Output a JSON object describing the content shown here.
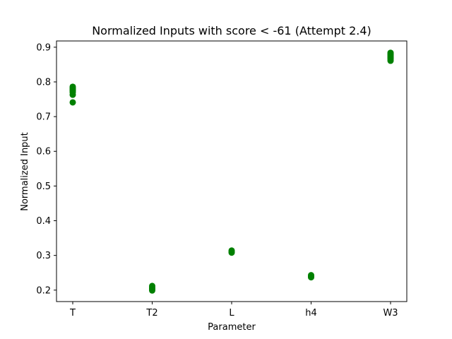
{
  "chart_data": {
    "type": "scatter",
    "title": "Normalized Inputs with score < -61 (Attempt 2.4)",
    "xlabel": "Parameter",
    "ylabel": "Normalized Input",
    "categories": [
      "T",
      "T2",
      "L",
      "h4",
      "W3"
    ],
    "ylim": [
      0.167,
      0.918
    ],
    "yticks": [
      0.2,
      0.3,
      0.4,
      0.5,
      0.6,
      0.7,
      0.8,
      0.9
    ],
    "ytick_labels": [
      "0.2",
      "0.3",
      "0.4",
      "0.5",
      "0.6",
      "0.7",
      "0.8",
      "0.9"
    ],
    "grid": false,
    "marker_color": "#008000",
    "series": [
      {
        "points": [
          {
            "x": "T",
            "y": 0.741
          },
          {
            "x": "T",
            "y": 0.763
          },
          {
            "x": "T",
            "y": 0.77
          },
          {
            "x": "T",
            "y": 0.774
          },
          {
            "x": "T",
            "y": 0.777
          },
          {
            "x": "T",
            "y": 0.78
          },
          {
            "x": "T",
            "y": 0.783
          },
          {
            "x": "T",
            "y": 0.786
          },
          {
            "x": "T2",
            "y": 0.199
          },
          {
            "x": "T2",
            "y": 0.202
          },
          {
            "x": "T2",
            "y": 0.205
          },
          {
            "x": "T2",
            "y": 0.208
          },
          {
            "x": "T2",
            "y": 0.212
          },
          {
            "x": "L",
            "y": 0.308
          },
          {
            "x": "L",
            "y": 0.311
          },
          {
            "x": "L",
            "y": 0.314
          },
          {
            "x": "h4",
            "y": 0.237
          },
          {
            "x": "h4",
            "y": 0.24
          },
          {
            "x": "h4",
            "y": 0.243
          },
          {
            "x": "W3",
            "y": 0.861
          },
          {
            "x": "W3",
            "y": 0.866
          },
          {
            "x": "W3",
            "y": 0.87
          },
          {
            "x": "W3",
            "y": 0.874
          },
          {
            "x": "W3",
            "y": 0.878
          },
          {
            "x": "W3",
            "y": 0.881
          },
          {
            "x": "W3",
            "y": 0.884
          }
        ]
      }
    ]
  }
}
